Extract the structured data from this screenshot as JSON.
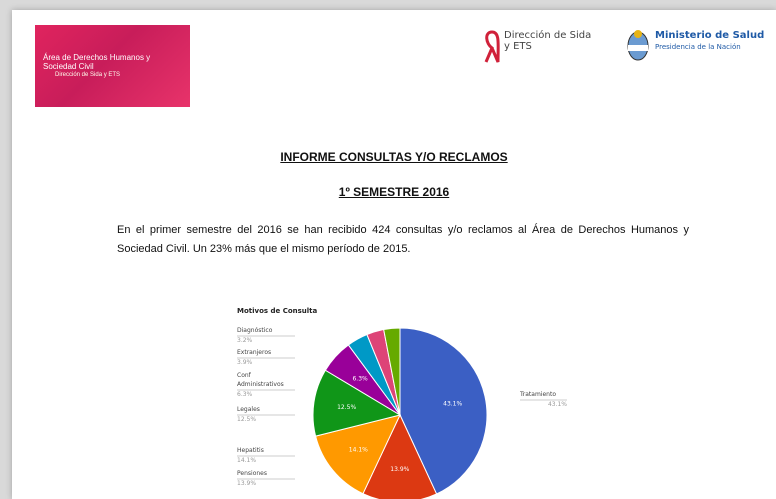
{
  "header": {
    "logo_title": "Área de Derechos Humanos y Sociedad Civil",
    "logo_subtitle": "Dirección de Sida y ETS",
    "partner": "Dirección de Sida y ETS",
    "ministry": "Ministerio de Salud",
    "ministry_sub": "Presidencia de la Nación"
  },
  "document": {
    "title": "INFORME CONSULTAS Y/O RECLAMOS",
    "subtitle": "1º SEMESTRE 2016",
    "paragraph": "En el primer semestre del 2016 se han recibido 424 consultas y/o reclamos al Área de Derechos Humanos y Sociedad Civil. Un 23% más que el mismo período de 2015."
  },
  "chart_data": {
    "type": "pie",
    "title": "Motivos de Consulta",
    "categories": [
      "Tratamiento",
      "Pensiones",
      "Hepatitis",
      "Legales",
      "Conf Administrativos",
      "Extranjeros",
      "Diagnóstico",
      null
    ],
    "values": [
      43.1,
      13.9,
      14.1,
      12.5,
      6.3,
      3.9,
      3.2,
      3.0
    ],
    "value_labels": [
      "43.1%",
      "13.9%",
      "14.1%",
      "12.5%",
      "6.3%",
      "3.9%",
      "3.2%",
      null
    ],
    "colors": [
      "#3b5fc4",
      "#dc3912",
      "#ff9900",
      "#109618",
      "#990099",
      "#0099c6",
      "#dd4477",
      "#66aa00"
    ]
  }
}
